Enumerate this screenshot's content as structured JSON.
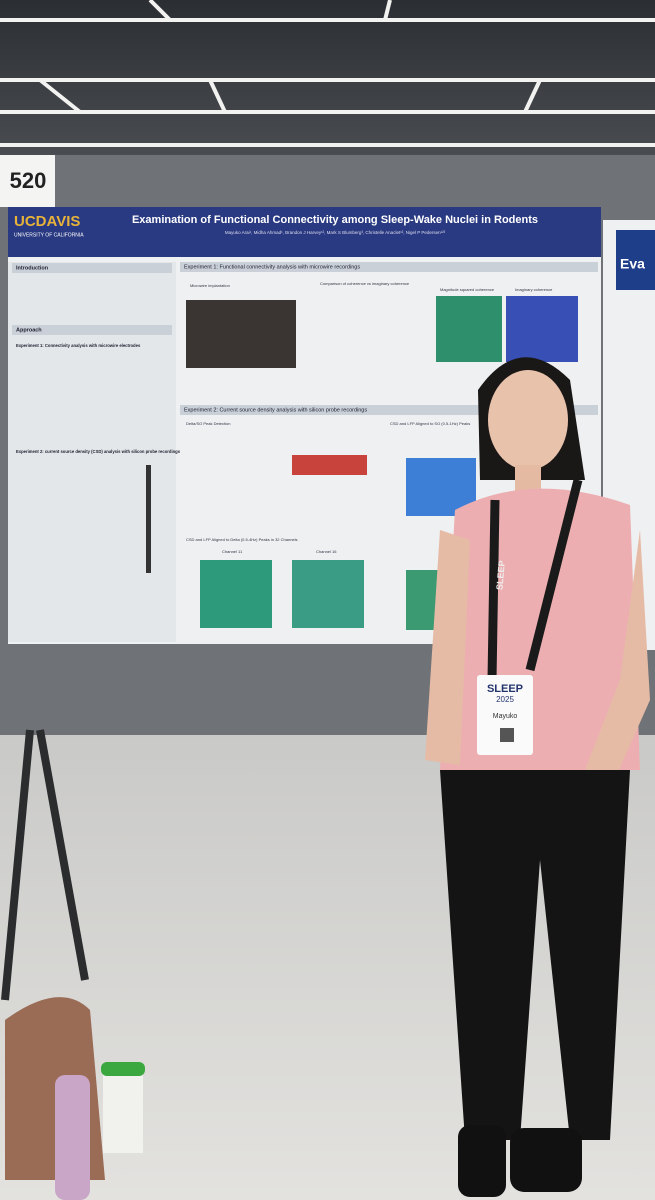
{
  "booth_number": "520",
  "poster": {
    "logo": "UCDAVIS",
    "logo_sub": "UNIVERSITY OF CALIFORNIA",
    "title": "Examination of Functional Connectivity among Sleep-Wake Nuclei in Rodents",
    "authors": "Mayuko Arai¹, Midha Ahmad¹, Brandon J Harvey¹², Mark S Blumberg³, Christelle Anaclet¹², Nigel P Pedersen¹²³",
    "left_sections": [
      "Introduction",
      "Approach",
      "Experiment 1: Connectivity analysis with microwire electrodes",
      "Experiment 2: current source density (CSD) analysis with silicon probe recordings"
    ],
    "experiment_1": "Experiment 1: Functional connectivity analysis with microwire recordings",
    "experiment_2": "Experiment 2: Current source density analysis with silicon probe recordings",
    "panels": [
      "Microwire implantation",
      "Comparison of coherence vs imaginary coherence",
      "Magnitude squared coherence",
      "Imaginary coherence",
      "Delta/SO Peak Detection",
      "CSD and LFP Aligned to SO (0.5-1Hz) Peaks",
      "CSD and LFP Aligned to Delta (0.5-4Hz) Peaks in 32 Channels",
      "Channel 11",
      "Channel 16"
    ]
  },
  "next_poster_title": "Eva",
  "lanyard": "SLEEP",
  "badge": {
    "event": "SLEEP",
    "year": "2025",
    "name": "Mayuko"
  }
}
